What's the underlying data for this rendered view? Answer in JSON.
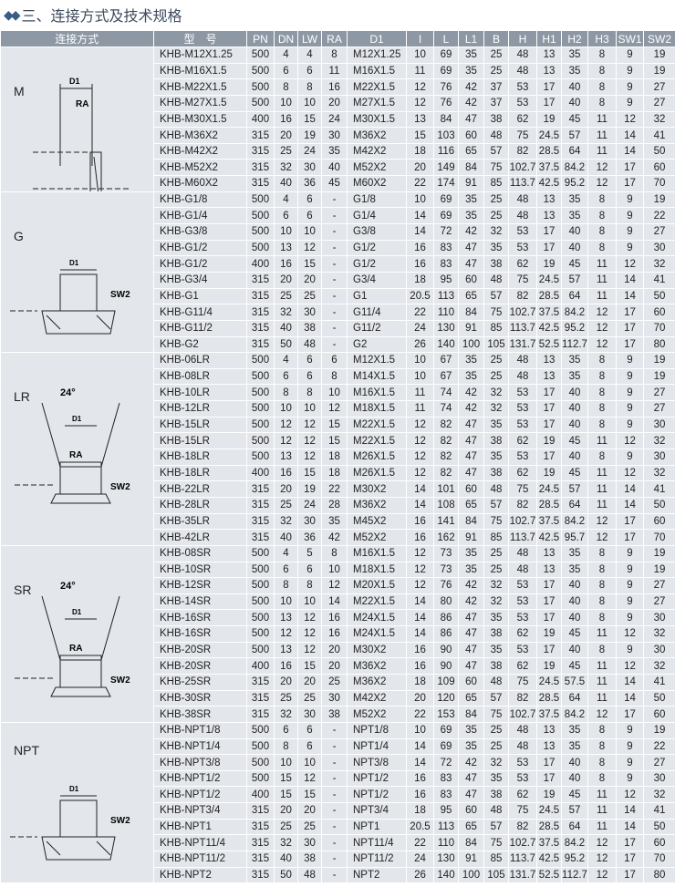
{
  "title": "三、连接方式及技术规格",
  "title_icon": "diamond-cluster-icon",
  "columns": [
    "连接方式",
    "型　号",
    "PN",
    "DN",
    "LW",
    "RA",
    "D1",
    "I",
    "L",
    "L1",
    "B",
    "H",
    "H1",
    "H2",
    "H3",
    "SW1",
    "SW2"
  ],
  "groups": [
    {
      "name": "M",
      "drawing_labels": [
        "D1",
        "RA"
      ],
      "rows": [
        [
          "KHB-M12X1.25",
          "500",
          "4",
          "4",
          "8",
          "M12X1.25",
          "10",
          "69",
          "35",
          "25",
          "48",
          "13",
          "35",
          "8",
          "9",
          "19"
        ],
        [
          "KHB-M16X1.5",
          "500",
          "6",
          "6",
          "11",
          "M16X1.5",
          "11",
          "69",
          "35",
          "25",
          "48",
          "13",
          "35",
          "8",
          "9",
          "19"
        ],
        [
          "KHB-M22X1.5",
          "500",
          "8",
          "8",
          "16",
          "M22X1.5",
          "12",
          "76",
          "42",
          "37",
          "53",
          "17",
          "40",
          "8",
          "9",
          "27"
        ],
        [
          "KHB-M27X1.5",
          "500",
          "10",
          "10",
          "20",
          "M27X1.5",
          "12",
          "76",
          "42",
          "37",
          "53",
          "17",
          "40",
          "8",
          "9",
          "27"
        ],
        [
          "KHB-M30X1.5",
          "400",
          "16",
          "15",
          "24",
          "M30X1.5",
          "13",
          "84",
          "47",
          "38",
          "62",
          "19",
          "45",
          "11",
          "12",
          "32"
        ],
        [
          "KHB-M36X2",
          "315",
          "20",
          "19",
          "30",
          "M36X2",
          "15",
          "103",
          "60",
          "48",
          "75",
          "24.5",
          "57",
          "11",
          "14",
          "41"
        ],
        [
          "KHB-M42X2",
          "315",
          "25",
          "24",
          "35",
          "M42X2",
          "18",
          "116",
          "65",
          "57",
          "82",
          "28.5",
          "64",
          "11",
          "14",
          "50"
        ],
        [
          "KHB-M52X2",
          "315",
          "32",
          "30",
          "40",
          "M52X2",
          "20",
          "149",
          "84",
          "75",
          "102.7",
          "37.5",
          "84.2",
          "12",
          "17",
          "60"
        ],
        [
          "KHB-M60X2",
          "315",
          "40",
          "36",
          "45",
          "M60X2",
          "22",
          "174",
          "91",
          "85",
          "113.7",
          "42.5",
          "95.2",
          "12",
          "17",
          "70"
        ]
      ]
    },
    {
      "name": "G",
      "drawing_labels": [
        "D1",
        "SW2"
      ],
      "rows": [
        [
          "KHB-G1/8",
          "500",
          "4",
          "6",
          "-",
          "G1/8",
          "10",
          "69",
          "35",
          "25",
          "48",
          "13",
          "35",
          "8",
          "9",
          "19"
        ],
        [
          "KHB-G1/4",
          "500",
          "6",
          "6",
          "-",
          "G1/4",
          "14",
          "69",
          "35",
          "25",
          "48",
          "13",
          "35",
          "8",
          "9",
          "22"
        ],
        [
          "KHB-G3/8",
          "500",
          "10",
          "10",
          "-",
          "G3/8",
          "14",
          "72",
          "42",
          "32",
          "53",
          "17",
          "40",
          "8",
          "9",
          "27"
        ],
        [
          "KHB-G1/2",
          "500",
          "13",
          "12",
          "-",
          "G1/2",
          "16",
          "83",
          "47",
          "35",
          "53",
          "17",
          "40",
          "8",
          "9",
          "30"
        ],
        [
          "KHB-G1/2",
          "400",
          "16",
          "15",
          "-",
          "G1/2",
          "16",
          "83",
          "47",
          "38",
          "62",
          "19",
          "45",
          "11",
          "12",
          "32"
        ],
        [
          "KHB-G3/4",
          "315",
          "20",
          "20",
          "-",
          "G3/4",
          "18",
          "95",
          "60",
          "48",
          "75",
          "24.5",
          "57",
          "11",
          "14",
          "41"
        ],
        [
          "KHB-G1",
          "315",
          "25",
          "25",
          "-",
          "G1",
          "20.5",
          "113",
          "65",
          "57",
          "82",
          "28.5",
          "64",
          "11",
          "14",
          "50"
        ],
        [
          "KHB-G11/4",
          "315",
          "32",
          "30",
          "-",
          "G11/4",
          "22",
          "110",
          "84",
          "75",
          "102.7",
          "37.5",
          "84.2",
          "12",
          "17",
          "60"
        ],
        [
          "KHB-G11/2",
          "315",
          "40",
          "38",
          "-",
          "G11/2",
          "24",
          "130",
          "91",
          "85",
          "113.7",
          "42.5",
          "95.2",
          "12",
          "17",
          "70"
        ],
        [
          "KHB-G2",
          "315",
          "50",
          "48",
          "-",
          "G2",
          "26",
          "140",
          "100",
          "105",
          "131.7",
          "52.5",
          "112.7",
          "12",
          "17",
          "80"
        ]
      ]
    },
    {
      "name": "LR",
      "drawing_labels": [
        "24°",
        "D1",
        "RA",
        "SW2"
      ],
      "rows": [
        [
          "KHB-06LR",
          "500",
          "4",
          "6",
          "6",
          "M12X1.5",
          "10",
          "67",
          "35",
          "25",
          "48",
          "13",
          "35",
          "8",
          "9",
          "19"
        ],
        [
          "KHB-08LR",
          "500",
          "6",
          "6",
          "8",
          "M14X1.5",
          "10",
          "67",
          "35",
          "25",
          "48",
          "13",
          "35",
          "8",
          "9",
          "19"
        ],
        [
          "KHB-10LR",
          "500",
          "8",
          "8",
          "10",
          "M16X1.5",
          "11",
          "74",
          "42",
          "32",
          "53",
          "17",
          "40",
          "8",
          "9",
          "27"
        ],
        [
          "KHB-12LR",
          "500",
          "10",
          "10",
          "12",
          "M18X1.5",
          "11",
          "74",
          "42",
          "32",
          "53",
          "17",
          "40",
          "8",
          "9",
          "27"
        ],
        [
          "KHB-15LR",
          "500",
          "12",
          "12",
          "15",
          "M22X1.5",
          "12",
          "82",
          "47",
          "35",
          "53",
          "17",
          "40",
          "8",
          "9",
          "30"
        ],
        [
          "KHB-15LR",
          "500",
          "12",
          "12",
          "15",
          "M22X1.5",
          "12",
          "82",
          "47",
          "38",
          "62",
          "19",
          "45",
          "11",
          "12",
          "32"
        ],
        [
          "KHB-18LR",
          "500",
          "13",
          "12",
          "18",
          "M26X1.5",
          "12",
          "82",
          "47",
          "35",
          "53",
          "17",
          "40",
          "8",
          "9",
          "30"
        ],
        [
          "KHB-18LR",
          "400",
          "16",
          "15",
          "18",
          "M26X1.5",
          "12",
          "82",
          "47",
          "38",
          "62",
          "19",
          "45",
          "11",
          "12",
          "32"
        ],
        [
          "KHB-22LR",
          "315",
          "20",
          "19",
          "22",
          "M30X2",
          "14",
          "101",
          "60",
          "48",
          "75",
          "24.5",
          "57",
          "11",
          "14",
          "41"
        ],
        [
          "KHB-28LR",
          "315",
          "25",
          "24",
          "28",
          "M36X2",
          "14",
          "108",
          "65",
          "57",
          "82",
          "28.5",
          "64",
          "11",
          "14",
          "50"
        ],
        [
          "KHB-35LR",
          "315",
          "32",
          "30",
          "35",
          "M45X2",
          "16",
          "141",
          "84",
          "75",
          "102.7",
          "37.5",
          "84.2",
          "12",
          "17",
          "60"
        ],
        [
          "KHB-42LR",
          "315",
          "40",
          "36",
          "42",
          "M52X2",
          "16",
          "162",
          "91",
          "85",
          "113.7",
          "42.5",
          "95.7",
          "12",
          "17",
          "70"
        ]
      ]
    },
    {
      "name": "SR",
      "drawing_labels": [
        "24°",
        "D1",
        "RA",
        "SW2"
      ],
      "rows": [
        [
          "KHB-08SR",
          "500",
          "4",
          "5",
          "8",
          "M16X1.5",
          "12",
          "73",
          "35",
          "25",
          "48",
          "13",
          "35",
          "8",
          "9",
          "19"
        ],
        [
          "KHB-10SR",
          "500",
          "6",
          "6",
          "10",
          "M18X1.5",
          "12",
          "73",
          "35",
          "25",
          "48",
          "13",
          "35",
          "8",
          "9",
          "19"
        ],
        [
          "KHB-12SR",
          "500",
          "8",
          "8",
          "12",
          "M20X1.5",
          "12",
          "76",
          "42",
          "32",
          "53",
          "17",
          "40",
          "8",
          "9",
          "27"
        ],
        [
          "KHB-14SR",
          "500",
          "10",
          "10",
          "14",
          "M22X1.5",
          "14",
          "80",
          "42",
          "32",
          "53",
          "17",
          "40",
          "8",
          "9",
          "27"
        ],
        [
          "KHB-16SR",
          "500",
          "13",
          "12",
          "16",
          "M24X1.5",
          "14",
          "86",
          "47",
          "35",
          "53",
          "17",
          "40",
          "8",
          "9",
          "30"
        ],
        [
          "KHB-16SR",
          "500",
          "12",
          "12",
          "16",
          "M24X1.5",
          "14",
          "86",
          "47",
          "38",
          "62",
          "19",
          "45",
          "11",
          "12",
          "32"
        ],
        [
          "KHB-20SR",
          "500",
          "13",
          "12",
          "20",
          "M30X2",
          "16",
          "90",
          "47",
          "35",
          "53",
          "17",
          "40",
          "8",
          "9",
          "30"
        ],
        [
          "KHB-20SR",
          "400",
          "16",
          "15",
          "20",
          "M36X2",
          "16",
          "90",
          "47",
          "38",
          "62",
          "19",
          "45",
          "11",
          "12",
          "32"
        ],
        [
          "KHB-25SR",
          "315",
          "20",
          "20",
          "25",
          "M36X2",
          "18",
          "109",
          "60",
          "48",
          "75",
          "24.5",
          "57.5",
          "11",
          "14",
          "41"
        ],
        [
          "KHB-30SR",
          "315",
          "25",
          "25",
          "30",
          "M42X2",
          "20",
          "120",
          "65",
          "57",
          "82",
          "28.5",
          "64",
          "11",
          "14",
          "50"
        ],
        [
          "KHB-38SR",
          "315",
          "32",
          "30",
          "38",
          "M52X2",
          "22",
          "153",
          "84",
          "75",
          "102.7",
          "37.5",
          "84.2",
          "12",
          "17",
          "60"
        ]
      ]
    },
    {
      "name": "NPT",
      "drawing_labels": [
        "D1",
        "SW2"
      ],
      "rows": [
        [
          "KHB-NPT1/8",
          "500",
          "6",
          "6",
          "-",
          "NPT1/8",
          "10",
          "69",
          "35",
          "25",
          "48",
          "13",
          "35",
          "8",
          "9",
          "19"
        ],
        [
          "KHB-NPT1/4",
          "500",
          "8",
          "6",
          "-",
          "NPT1/4",
          "14",
          "69",
          "35",
          "25",
          "48",
          "13",
          "35",
          "8",
          "9",
          "22"
        ],
        [
          "KHB-NPT3/8",
          "500",
          "10",
          "10",
          "-",
          "NPT3/8",
          "14",
          "72",
          "42",
          "32",
          "53",
          "17",
          "40",
          "8",
          "9",
          "27"
        ],
        [
          "KHB-NPT1/2",
          "500",
          "15",
          "12",
          "-",
          "NPT1/2",
          "16",
          "83",
          "47",
          "35",
          "53",
          "17",
          "40",
          "8",
          "9",
          "30"
        ],
        [
          "KHB-NPT1/2",
          "400",
          "15",
          "15",
          "-",
          "NPT1/2",
          "16",
          "83",
          "47",
          "38",
          "62",
          "19",
          "45",
          "11",
          "12",
          "32"
        ],
        [
          "KHB-NPT3/4",
          "315",
          "20",
          "20",
          "-",
          "NPT3/4",
          "18",
          "95",
          "60",
          "48",
          "75",
          "24.5",
          "57",
          "11",
          "14",
          "41"
        ],
        [
          "KHB-NPT1",
          "315",
          "25",
          "25",
          "-",
          "NPT1",
          "20.5",
          "113",
          "65",
          "57",
          "82",
          "28.5",
          "64",
          "11",
          "14",
          "50"
        ],
        [
          "KHB-NPT11/4",
          "315",
          "32",
          "30",
          "-",
          "NPT11/4",
          "22",
          "110",
          "84",
          "75",
          "102.7",
          "37.5",
          "84.2",
          "12",
          "17",
          "60"
        ],
        [
          "KHB-NPT11/2",
          "315",
          "40",
          "38",
          "-",
          "NPT11/2",
          "24",
          "130",
          "91",
          "85",
          "113.7",
          "42.5",
          "95.2",
          "12",
          "17",
          "70"
        ],
        [
          "KHB-NPT2",
          "315",
          "50",
          "48",
          "-",
          "NPT2",
          "26",
          "140",
          "100",
          "105",
          "131.7",
          "52.5",
          "112.7",
          "12",
          "17",
          "80"
        ]
      ]
    }
  ]
}
